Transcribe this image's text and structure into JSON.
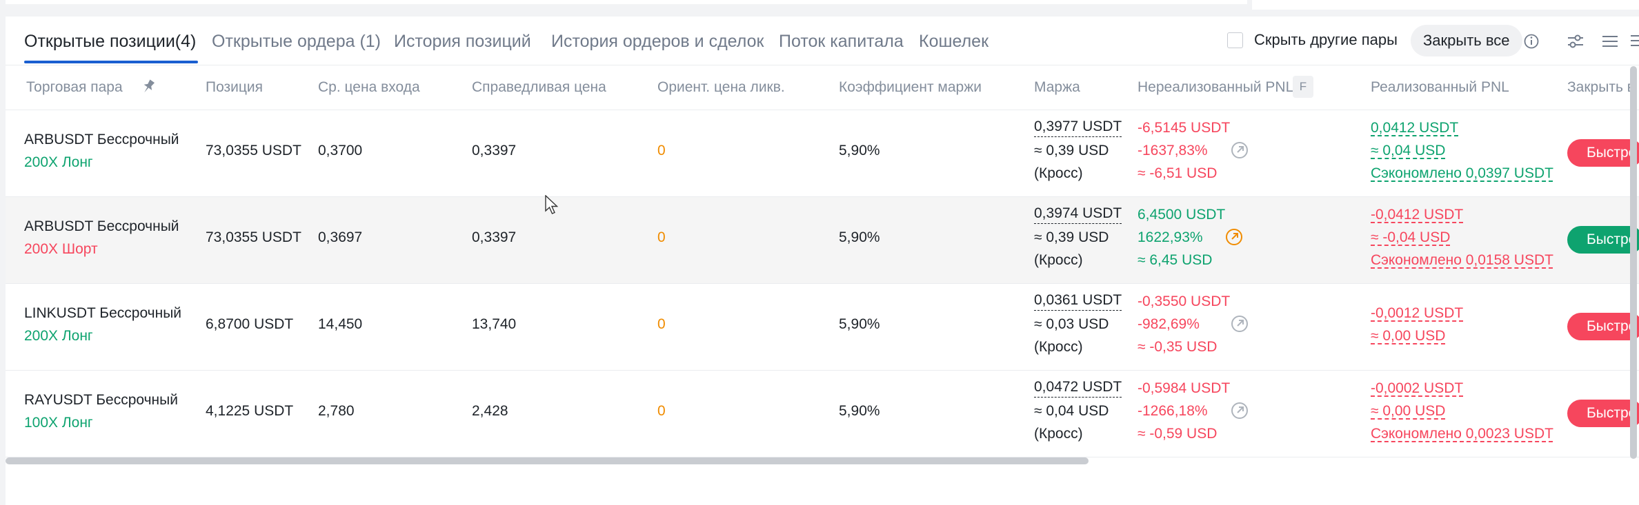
{
  "tabs": [
    {
      "label": "Открытые позиции(4)",
      "active": true
    },
    {
      "label": "Открытые ордера (1)"
    },
    {
      "label": "История позиций"
    },
    {
      "label": "История ордеров и сделок"
    },
    {
      "label": "Поток капитала"
    },
    {
      "label": "Кошелек"
    }
  ],
  "toolbar": {
    "hide_pairs_label": "Скрыть другие пары",
    "close_all_label": "Закрыть все"
  },
  "columns": {
    "pair": "Торговая пара",
    "position": "Позиция",
    "entry": "Ср. цена входа",
    "fair": "Справедливая цена",
    "liq": "Ориент. цена ликв.",
    "ratio": "Коэффициент маржи",
    "margin": "Маржа",
    "upnl": "Нереализованный PNL",
    "upnl_badge": "F",
    "rpnl": "Реализованный PNL",
    "close": "Закрыть в"
  },
  "rows": [
    {
      "pair": "ARBUSDT Бессрочный",
      "side": "200X Лонг",
      "position": "73,0355 USDT",
      "entry": "0,3700",
      "fair": "0,3397",
      "liq": "0",
      "ratio": "5,90%",
      "margin_usdt": "0,3977 USDT",
      "margin_usd": "≈ 0,39 USD",
      "margin_mode": "(Кросс)",
      "upnl_usdt": "-6,5145 USDT",
      "upnl_pct": "-1637,83%",
      "upnl_usd": "≈ -6,51 USD",
      "rpnl_usdt": "0,0412 USDT",
      "rpnl_usd": "≈ 0,04 USD",
      "rpnl_saved": "Сэкономлено 0,0397 USDT",
      "quick": "Быстро"
    },
    {
      "pair": "ARBUSDT Бессрочный",
      "side": "200X Шорт",
      "position": "73,0355 USDT",
      "entry": "0,3697",
      "fair": "0,3397",
      "liq": "0",
      "ratio": "5,90%",
      "margin_usdt": "0,3974 USDT",
      "margin_usd": "≈ 0,39 USD",
      "margin_mode": "(Кросс)",
      "upnl_usdt": "6,4500 USDT",
      "upnl_pct": "1622,93%",
      "upnl_usd": "≈ 6,45 USD",
      "rpnl_usdt": "-0,0412 USDT",
      "rpnl_usd": "≈ -0,04 USD",
      "rpnl_saved": "Сэкономлено 0,0158 USDT",
      "quick": "Быстро"
    },
    {
      "pair": "LINKUSDT Бессрочный",
      "side": "200X Лонг",
      "position": "6,8700 USDT",
      "entry": "14,450",
      "fair": "13,740",
      "liq": "0",
      "ratio": "5,90%",
      "margin_usdt": "0,0361 USDT",
      "margin_usd": "≈ 0,03 USD",
      "margin_mode": "(Кросс)",
      "upnl_usdt": "-0,3550 USDT",
      "upnl_pct": "-982,69%",
      "upnl_usd": "≈ -0,35 USD",
      "rpnl_usdt": "-0,0012 USDT",
      "rpnl_usd": "≈ 0,00 USD",
      "quick": "Быстро"
    },
    {
      "pair": "RAYUSDT Бессрочный",
      "side": "100X Лонг",
      "position": "4,1225 USDT",
      "entry": "2,780",
      "fair": "2,428",
      "liq": "0",
      "ratio": "5,90%",
      "margin_usdt": "0,0472 USDT",
      "margin_usd": "≈ 0,04 USD",
      "margin_mode": "(Кросс)",
      "upnl_usdt": "-0,5984 USDT",
      "upnl_pct": "-1266,18%",
      "upnl_usd": "≈ -0,59 USD",
      "rpnl_usdt": "-0,0002 USDT",
      "rpnl_usd": "≈ 0,00 USD",
      "rpnl_saved": "Сэкономлено 0,0023 USDT",
      "quick": "Быстро"
    }
  ],
  "colors": {
    "accent": "#1a5fd0",
    "profit": "#0ea36f",
    "loss": "#f6465d",
    "liq": "#f08c00"
  }
}
